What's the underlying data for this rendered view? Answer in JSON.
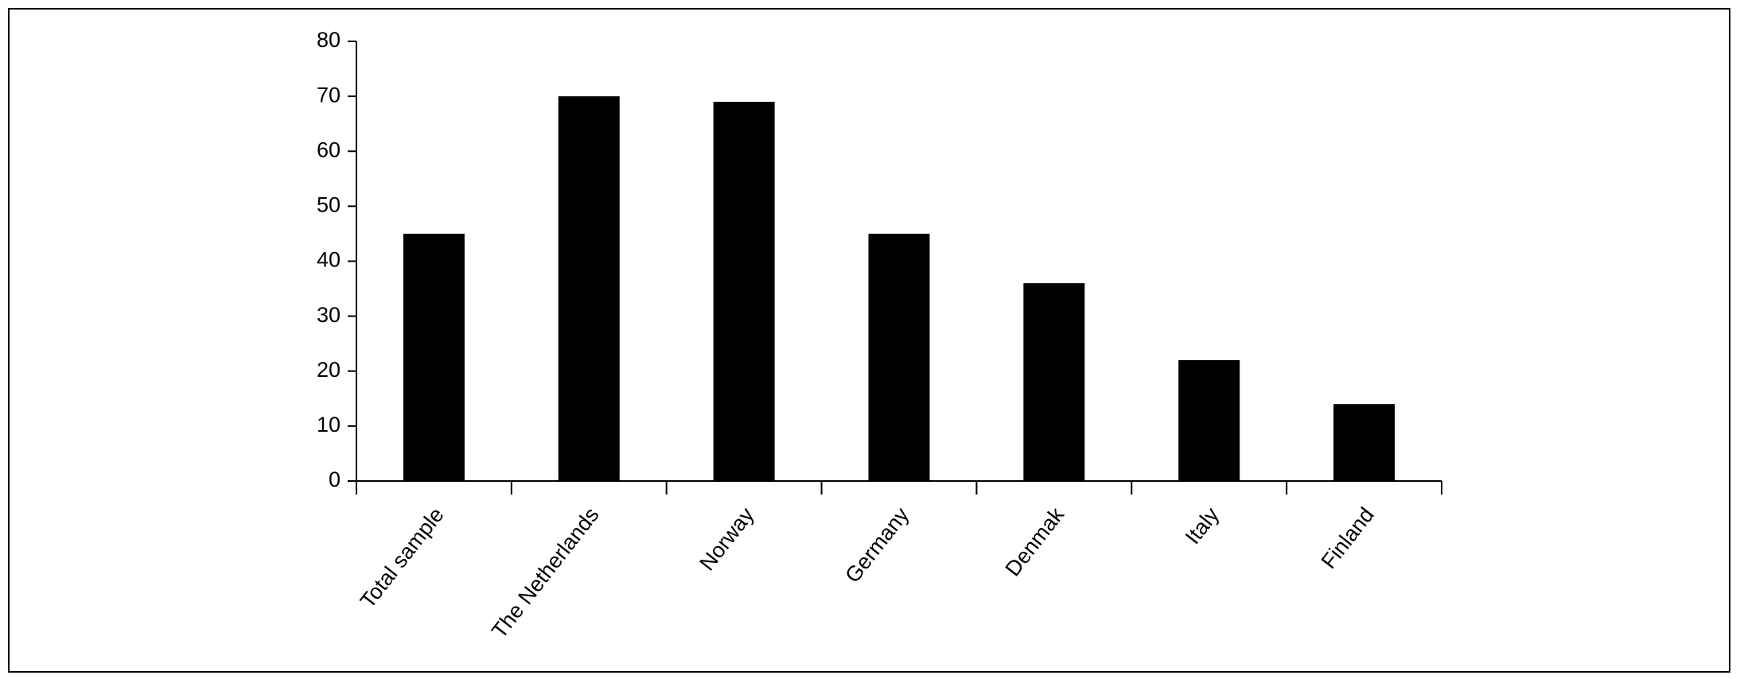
{
  "chart_data": {
    "type": "bar",
    "categories": [
      "Total sample",
      "The Netherlands",
      "Norway",
      "Germany",
      "Denmak",
      "Italy",
      "Finland"
    ],
    "values": [
      45,
      70,
      69,
      45,
      36,
      22,
      14
    ],
    "color": "#000000",
    "ylim": [
      0,
      80
    ],
    "yticks": [
      0,
      10,
      20,
      30,
      40,
      50,
      60,
      70,
      80
    ],
    "grid": false
  }
}
